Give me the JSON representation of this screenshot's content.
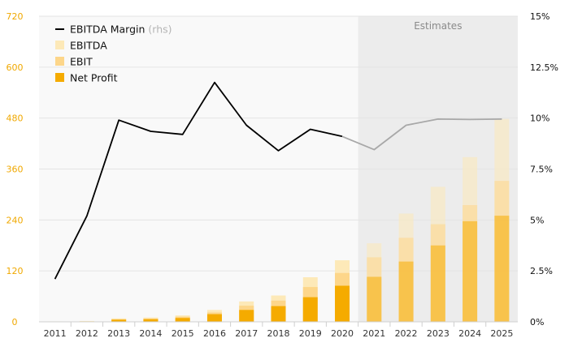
{
  "chart_data": {
    "type": "bar",
    "x": [
      "2011",
      "2012",
      "2013",
      "2014",
      "2015",
      "2016",
      "2017",
      "2018",
      "2019",
      "2020",
      "2021",
      "2022",
      "2023",
      "2024",
      "2025"
    ],
    "estimate_start_index": 10,
    "estimates_label": "Estimates",
    "y_left": {
      "min": 0,
      "max": 720,
      "ticks": [
        "0",
        "120",
        "240",
        "360",
        "480",
        "600",
        "720"
      ]
    },
    "y_right": {
      "min": 0,
      "max": 15,
      "ticks": [
        "0%",
        "2.5%",
        "5%",
        "7.5%",
        "10%",
        "12.5%",
        "15%"
      ]
    },
    "legend": [
      {
        "key": "ebitda_margin",
        "label": "EBITDA Margin",
        "suffix": "(rhs)",
        "type": "line"
      },
      {
        "key": "ebitda",
        "label": "EBITDA",
        "type": "bar"
      },
      {
        "key": "ebit",
        "label": "EBIT",
        "type": "bar"
      },
      {
        "key": "net_profit",
        "label": "Net Profit",
        "type": "bar"
      }
    ],
    "series": [
      {
        "key": "ebitda",
        "values": [
          1,
          2,
          8,
          10,
          15,
          28,
          48,
          62,
          105,
          145,
          185,
          255,
          318,
          388,
          478
        ]
      },
      {
        "key": "ebit",
        "values": [
          0.5,
          1,
          6,
          8,
          12,
          22,
          38,
          50,
          82,
          115,
          152,
          198,
          230,
          275,
          332
        ]
      },
      {
        "key": "net_profit",
        "values": [
          0.3,
          0.5,
          5,
          6,
          9,
          18,
          28,
          37,
          58,
          85,
          106,
          142,
          180,
          237,
          250
        ]
      },
      {
        "key": "ebitda_margin",
        "axis": "right",
        "values": [
          2.1,
          5.2,
          9.9,
          9.35,
          9.2,
          11.75,
          9.65,
          8.4,
          9.45,
          9.1,
          8.45,
          9.65,
          9.95,
          9.93,
          9.95
        ]
      }
    ],
    "colors": {
      "ebitda": "#fde9b8",
      "ebit": "#fdd68a",
      "net_profit": "#f5ab00",
      "line_actual": "#000000",
      "line_estimate": "#a8a8a8",
      "estimate_bg": "#ececec",
      "left_axis": "#f0a800"
    }
  }
}
